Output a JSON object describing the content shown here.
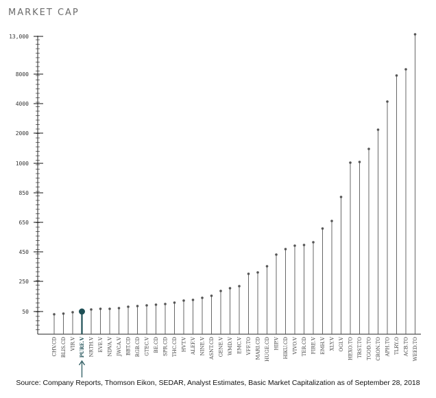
{
  "chart_data": {
    "type": "lollipop",
    "title": "MARKET CAP",
    "y_ticks": [
      "13,000",
      "8000",
      "4000",
      "2000",
      "1000",
      "850",
      "650",
      "450",
      "250",
      "50"
    ],
    "categories": [
      "CHV.CD",
      "BLIS.CD",
      "VIR.V",
      "PURE.V",
      "NRTH.V",
      "EVE.V",
      "NDVA.V",
      "JWCA.V",
      "BBT.CD",
      "RGB.CD",
      "GTEC.V",
      "BE.CD",
      "SPR.CD",
      "THC.CD",
      "HVT.V",
      "ALEF.V",
      "NINE.V",
      "ASNT.CD",
      "GENE.V",
      "WMD.V",
      "EMC.V",
      "VFF.TO",
      "MARI.CD",
      "HUGE.CD",
      "HIP.V",
      "HIKU.CD",
      "VIVO.V",
      "TER.CD",
      "FIRE.V",
      "EMH.V",
      "XLY.V",
      "OGI.V",
      "HEXO.TO",
      "TRST.TO",
      "TGOD.TO",
      "CRON.TO",
      "APH.TO",
      "TLRY.O",
      "ACB.TO",
      "WEED.TO"
    ],
    "highlight": "PURE.V",
    "highlight_color": "#1e4f55",
    "stem_color": "#555555",
    "grid": false,
    "y_scale": "non-linear (custom tick spacing)"
  },
  "source": "Source: Company Reports, Thomson Eikon, SEDAR, Analyst Estimates, Basic Market Capitalization as of September 28, 2018"
}
